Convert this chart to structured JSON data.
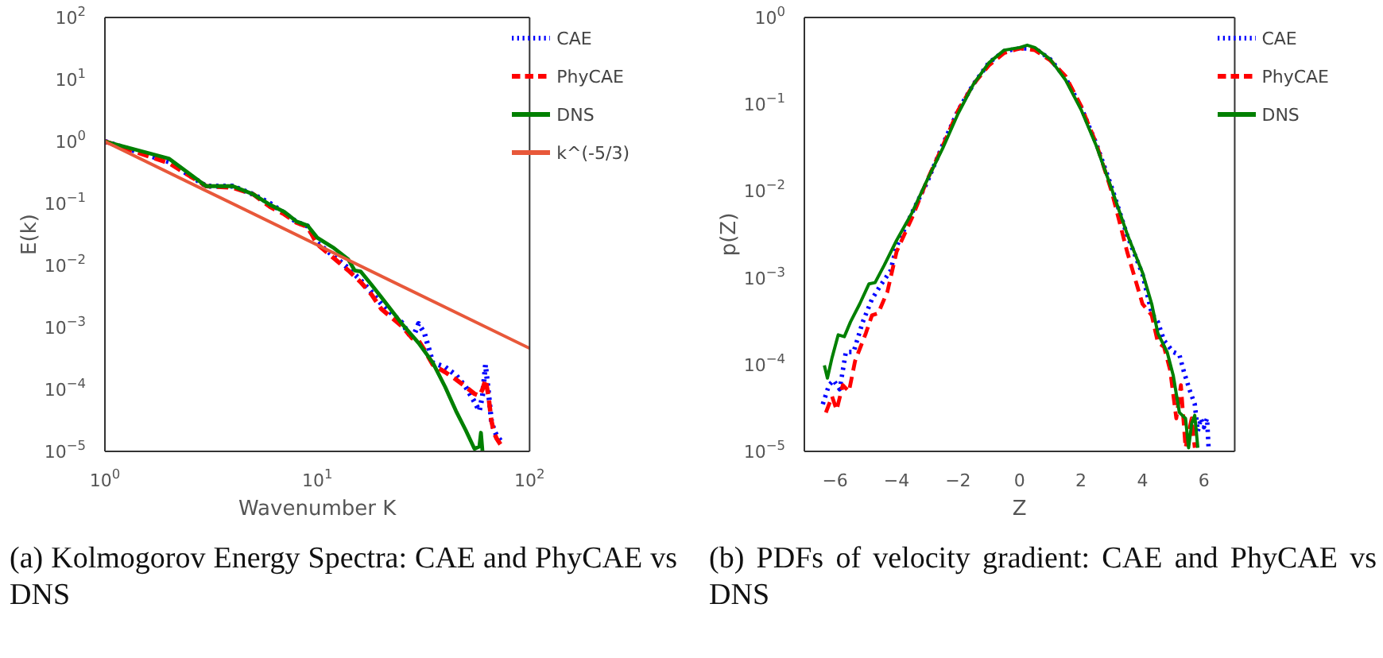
{
  "chart_data": [
    {
      "type": "line",
      "xlabel": "Wavenumber K",
      "ylabel": "E(k)",
      "log": "xy",
      "xlim": [
        1,
        100
      ],
      "ylim": [
        1e-05,
        100
      ],
      "xticks": [
        {
          "value": 1,
          "label": "10$^{0}$"
        },
        {
          "value": 10,
          "label": "10$^{1}$"
        },
        {
          "value": 100,
          "label": "10$^{2}$"
        }
      ],
      "yticks": [
        {
          "value": 1e-05,
          "label": "10$^{−5}$"
        },
        {
          "value": 0.0001,
          "label": "10$^{−4}$"
        },
        {
          "value": 0.001,
          "label": "10$^{−3}$"
        },
        {
          "value": 0.01,
          "label": "10$^{−2}$"
        },
        {
          "value": 0.1,
          "label": "10$^{−1}$"
        },
        {
          "value": 1,
          "label": "10$^{0}$"
        },
        {
          "value": 10,
          "label": "10$^{1}$"
        },
        {
          "value": 100,
          "label": "10$^{2}$"
        }
      ],
      "legend": "top right",
      "marker": "none",
      "series": [
        {
          "name": "CAE",
          "color": "#0000ff",
          "line_style": "dotted",
          "x": [
            1,
            2,
            3,
            4,
            5,
            6,
            7,
            8,
            9,
            10,
            12,
            14,
            16,
            18,
            20,
            25,
            28,
            30,
            32,
            35,
            40,
            45,
            50,
            55,
            58,
            60,
            62,
            64,
            66,
            68,
            70,
            74
          ],
          "values": [
            1.0,
            0.47,
            0.19,
            0.19,
            0.14,
            0.1,
            0.07,
            0.05,
            0.043,
            0.023,
            0.014,
            0.009,
            0.0058,
            0.0037,
            0.0024,
            0.0012,
            0.00065,
            0.00115,
            0.0008,
            0.00027,
            0.00023,
            0.00017,
            0.00011,
            6.3e-05,
            4.5e-05,
            7.9e-05,
            0.00025,
            9e-05,
            3.2e-05,
            2.2e-05,
            1.8e-05,
            1.4e-05
          ]
        },
        {
          "name": "PhyCAE",
          "color": "#ff0000",
          "line_style": "dashed",
          "x": [
            1,
            2,
            3,
            4,
            5,
            6,
            7,
            8,
            9,
            10,
            12,
            14,
            16,
            18,
            20,
            25,
            28,
            30,
            32,
            35,
            40,
            45,
            50,
            55,
            58,
            60,
            62,
            64,
            66,
            68,
            70,
            74
          ],
          "values": [
            1.0,
            0.45,
            0.19,
            0.18,
            0.14,
            0.088,
            0.067,
            0.049,
            0.042,
            0.022,
            0.013,
            0.0083,
            0.0054,
            0.0034,
            0.002,
            0.00105,
            0.00067,
            0.00061,
            0.00043,
            0.00025,
            0.00019,
            0.000145,
            0.00011,
            8.5e-05,
            7.9e-05,
            0.0001,
            0.000145,
            7.9e-05,
            3.2e-05,
            2e-05,
            1.6e-05,
            1.2e-05
          ]
        },
        {
          "name": "DNS",
          "color": "#008000",
          "line_style": "solid",
          "x": [
            1,
            2,
            3,
            4,
            5,
            6,
            7,
            8,
            9,
            10,
            12,
            14,
            15,
            16,
            18,
            20,
            25,
            30,
            35,
            40,
            45,
            50,
            55,
            58,
            59,
            60
          ],
          "values": [
            1.0,
            0.53,
            0.19,
            0.19,
            0.14,
            0.095,
            0.073,
            0.051,
            0.044,
            0.028,
            0.019,
            0.0125,
            0.0083,
            0.008,
            0.0049,
            0.0031,
            0.00115,
            0.00056,
            0.00027,
            0.00011,
            4.5e-05,
            2.2e-05,
            1.1e-05,
            1.2e-05,
            2e-05,
            1e-05
          ]
        },
        {
          "name": "k^(-5/3)",
          "color": "#e8583a",
          "line_style": "solid",
          "x": [
            1,
            100
          ],
          "values": [
            1.0,
            0.00046
          ]
        }
      ],
      "annotations": [
        "(a)  Kolmogorov Energy Spectra: CAE and PhyCAE vs DNS"
      ]
    },
    {
      "type": "line",
      "xlabel": "Z",
      "ylabel": "p(Z)",
      "log": "y",
      "xlim": [
        -7,
        7
      ],
      "ylim": [
        1e-05,
        1
      ],
      "xticks": [
        {
          "value": -6,
          "label": "−6"
        },
        {
          "value": -4,
          "label": "−4"
        },
        {
          "value": -2,
          "label": "−2"
        },
        0,
        2,
        4,
        6
      ],
      "yticks": [
        {
          "value": 1e-05,
          "label": "10$^{−5}$"
        },
        {
          "value": 0.0001,
          "label": "10$^{−4}$"
        },
        {
          "value": 0.001,
          "label": "10$^{−3}$"
        },
        {
          "value": 0.01,
          "label": "10$^{−2}$"
        },
        {
          "value": 0.1,
          "label": "10$^{−1}$"
        },
        {
          "value": 1,
          "label": "10$^{0}$"
        }
      ],
      "legend": "top right",
      "marker": "none",
      "series": [
        {
          "name": "CAE",
          "color": "#0000ff",
          "line_style": "dotted",
          "x": [
            -6.4,
            -6.2,
            -6.05,
            -5.85,
            -5.65,
            -5.4,
            -5.1,
            -4.8,
            -4.5,
            -4.2,
            -4,
            -3.5,
            -3,
            -2.5,
            -2,
            -1.5,
            -1,
            -0.5,
            0,
            0.5,
            1,
            1.5,
            2,
            2.5,
            3,
            3.5,
            4,
            4.3,
            4.5,
            4.7,
            5,
            5.2,
            5.35,
            5.55,
            5.7,
            5.8,
            5.9,
            6.0,
            6.1,
            6.15
          ],
          "values": [
            3.5e-05,
            5.8e-05,
            6.6e-05,
            5.2e-05,
            0.00014,
            0.00014,
            0.00031,
            0.00057,
            0.00084,
            0.0012,
            0.0023,
            0.0056,
            0.0128,
            0.034,
            0.085,
            0.17,
            0.3,
            0.41,
            0.44,
            0.44,
            0.33,
            0.2,
            0.093,
            0.035,
            0.011,
            0.0031,
            0.0011,
            0.00039,
            0.00031,
            0.00019,
            0.00014,
            0.00013,
            8.2e-05,
            4.9e-05,
            3.5e-05,
            1.7e-05,
            2.4e-05,
            1.9e-05,
            2.4e-05,
            1.1e-05
          ]
        },
        {
          "name": "PhyCAE",
          "color": "#ff0000",
          "line_style": "dashed",
          "x": [
            -6.3,
            -6.1,
            -5.95,
            -5.75,
            -5.55,
            -5.35,
            -5,
            -4.8,
            -4.6,
            -4.3,
            -4,
            -3.5,
            -3,
            -2.5,
            -2,
            -1.5,
            -1,
            -0.5,
            0,
            0.5,
            1,
            1.5,
            2,
            2.5,
            3,
            3.5,
            4,
            4.3,
            4.5,
            4.7,
            4.9,
            5.1,
            5.25,
            5.4,
            5.6,
            5.7
          ],
          "values": [
            2.8e-05,
            4.3e-05,
            3e-05,
            5.8e-05,
            4.9e-05,
            0.00011,
            0.00023,
            0.00037,
            0.00039,
            0.00069,
            0.002,
            0.0049,
            0.0135,
            0.033,
            0.085,
            0.17,
            0.28,
            0.39,
            0.44,
            0.42,
            0.32,
            0.21,
            0.096,
            0.035,
            0.0098,
            0.002,
            0.0005,
            0.00037,
            0.00018,
            0.00016,
            8.6e-05,
            2.4e-05,
            5.8e-05,
            1.1e-05,
            2.4e-05,
            1.1e-05
          ]
        },
        {
          "name": "DNS",
          "color": "#008000",
          "line_style": "solid",
          "x": [
            -6.35,
            -6.25,
            -6.1,
            -5.9,
            -5.7,
            -5.5,
            -5.2,
            -4.9,
            -4.7,
            -4.4,
            -4,
            -3.5,
            -3,
            -2.5,
            -2,
            -1.5,
            -1,
            -0.5,
            0,
            0.25,
            0.5,
            1,
            1.5,
            2,
            2.5,
            3,
            3.5,
            4,
            4.3,
            4.5,
            4.8,
            5,
            5.2,
            5.4,
            5.5,
            5.6,
            5.7,
            5.8
          ],
          "values": [
            9.8e-05,
            7e-05,
            0.00012,
            0.00022,
            0.00021,
            0.00031,
            0.0005,
            0.00085,
            0.00088,
            0.0014,
            0.0027,
            0.0056,
            0.0135,
            0.031,
            0.078,
            0.17,
            0.3,
            0.42,
            0.45,
            0.48,
            0.45,
            0.33,
            0.19,
            0.087,
            0.033,
            0.0105,
            0.0032,
            0.00115,
            0.0005,
            0.00023,
            0.00014,
            7.5e-05,
            2.8e-05,
            2.4e-05,
            1.1e-05,
            2.1e-05,
            2.6e-05,
            1.1e-05
          ]
        }
      ],
      "annotations": [
        "(b)  PDFs of velocity gradient:  CAE and PhyCAE vs DNS"
      ]
    }
  ]
}
